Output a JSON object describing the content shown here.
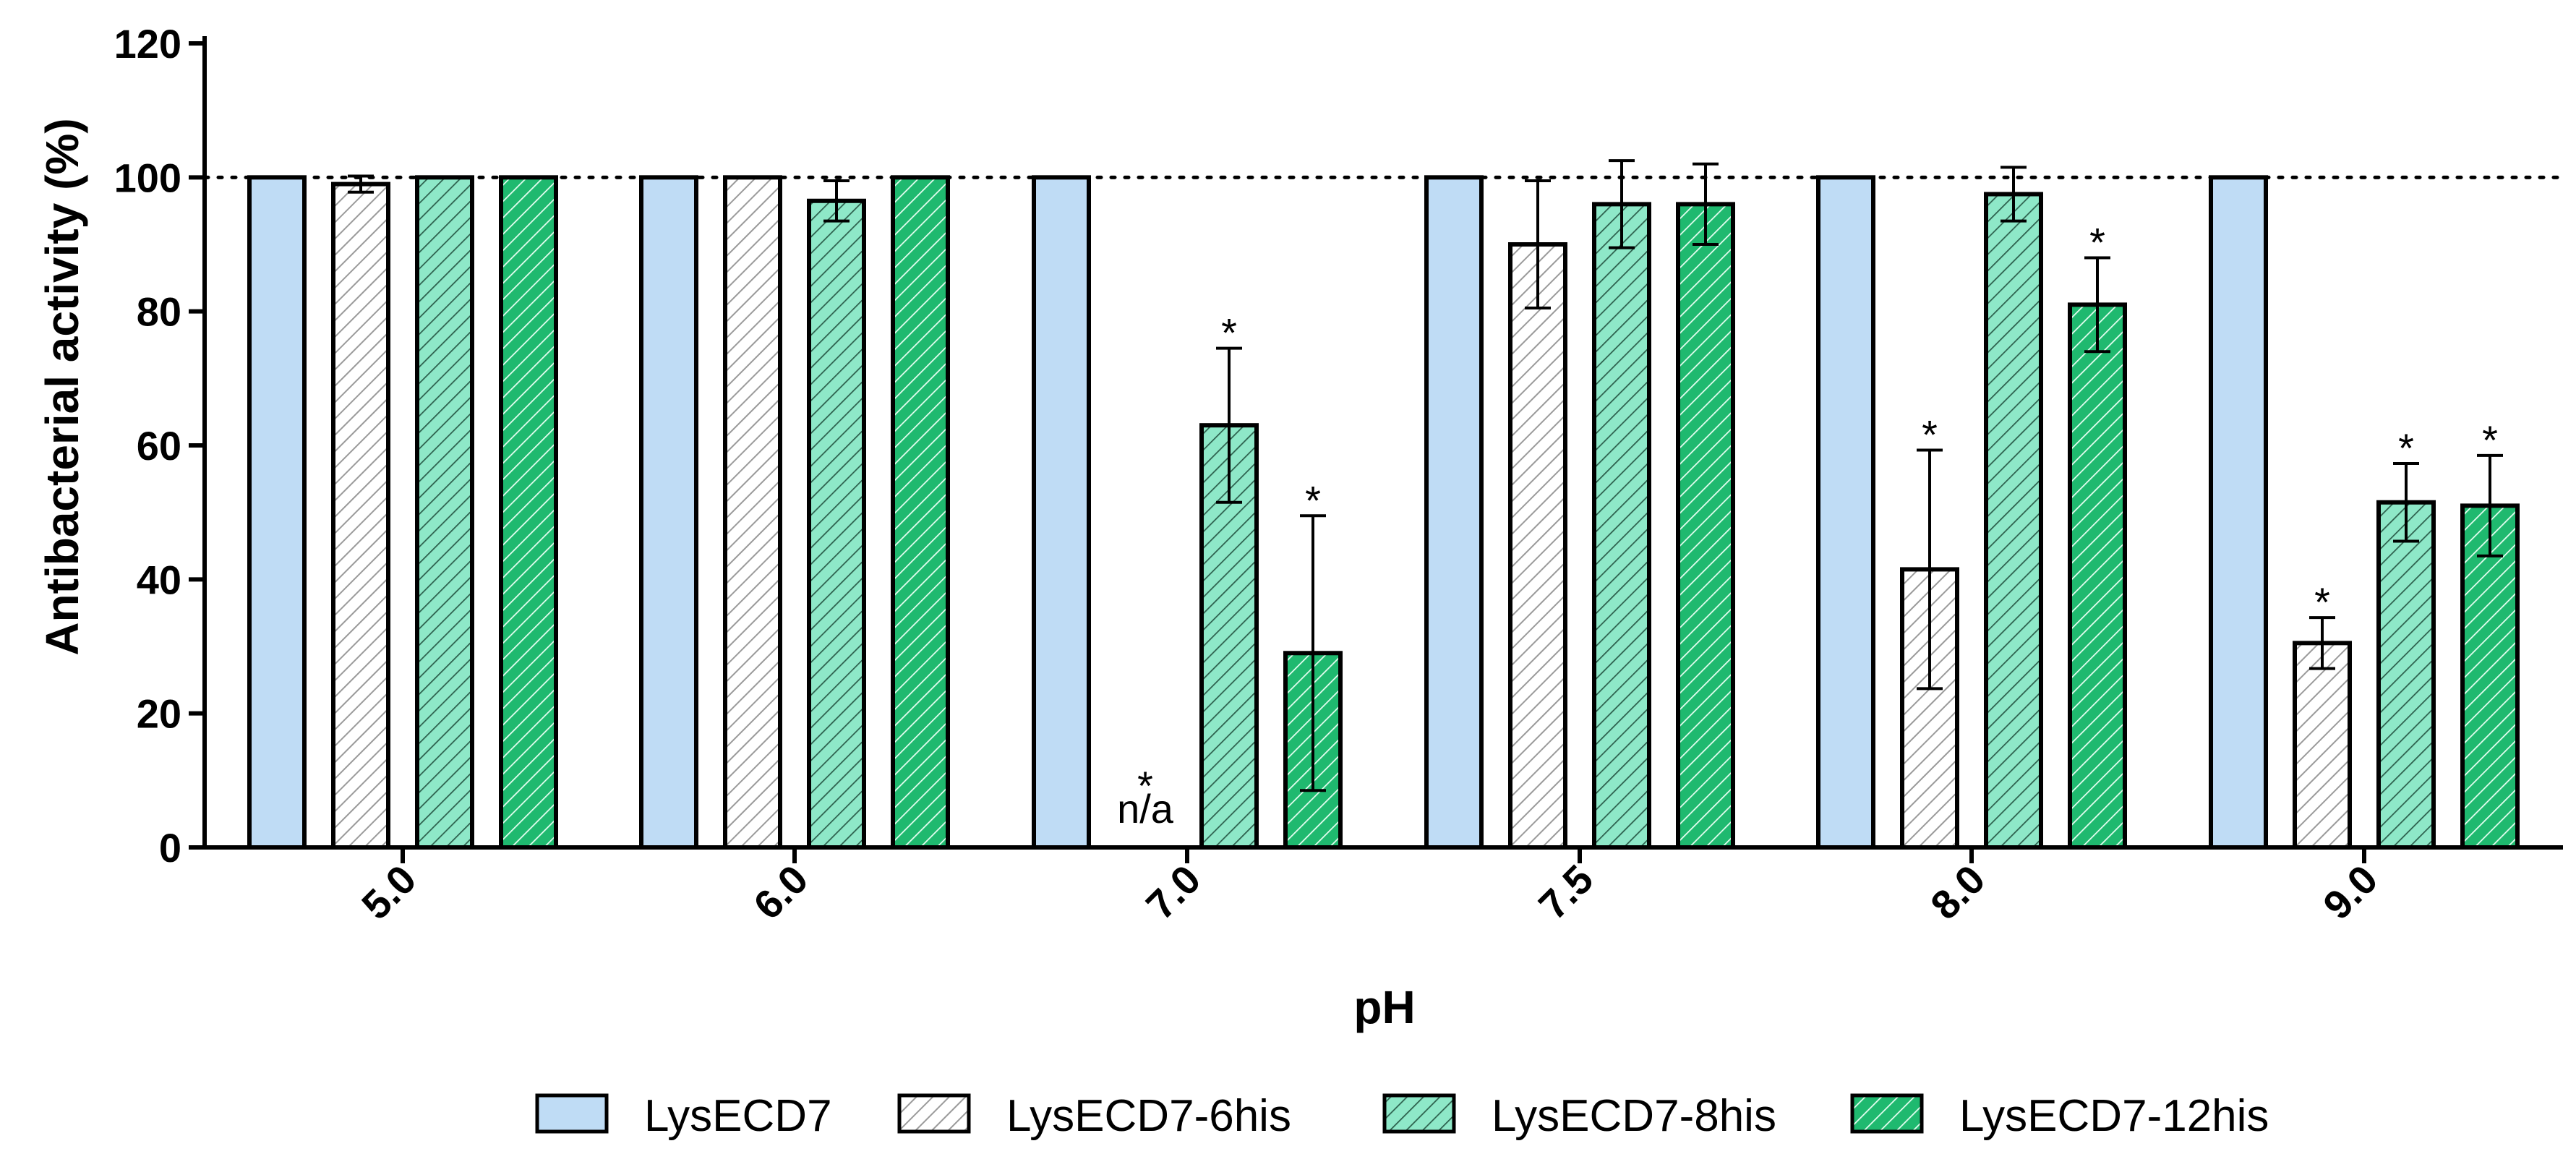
{
  "chart_data": {
    "type": "bar",
    "title": "",
    "xlabel": "pH",
    "ylabel": "Antibacterial activity (%)",
    "ylim": [
      0,
      120
    ],
    "yticks": [
      0,
      20,
      40,
      60,
      80,
      100,
      120
    ],
    "reference_line": {
      "y": 100,
      "style": "dotted"
    },
    "grid": false,
    "legend_position": "bottom",
    "categories": [
      "5.0",
      "6.0",
      "7.0",
      "7.5",
      "8.0",
      "9.0"
    ],
    "series": [
      {
        "name": "LysECD7",
        "color": "#bfdcf5",
        "pattern": "solid",
        "values": [
          100,
          100,
          100,
          100,
          100,
          100
        ],
        "errors": [
          null,
          null,
          null,
          null,
          null,
          null
        ],
        "significant": [
          false,
          false,
          false,
          false,
          false,
          false
        ],
        "na": [
          false,
          false,
          false,
          false,
          false,
          false
        ]
      },
      {
        "name": "LysECD7-6his",
        "color": "#ffffff",
        "pattern": "hatch-gray",
        "values": [
          99,
          100,
          0,
          90,
          41.5,
          30.5
        ],
        "errors": [
          1.2,
          null,
          null,
          9.5,
          17.8,
          3.8
        ],
        "significant": [
          false,
          false,
          true,
          false,
          true,
          true
        ],
        "na": [
          false,
          false,
          true,
          false,
          false,
          false
        ]
      },
      {
        "name": "LysECD7-8his",
        "color": "#8ee8c8",
        "pattern": "hatch-light",
        "values": [
          100,
          96.5,
          63,
          96,
          97.5,
          51.5
        ],
        "errors": [
          null,
          3,
          11.5,
          6.5,
          4,
          5.8
        ],
        "significant": [
          false,
          false,
          true,
          false,
          false,
          true
        ],
        "na": [
          false,
          false,
          false,
          false,
          false,
          false
        ]
      },
      {
        "name": "LysECD7-12his",
        "color": "#1fb96f",
        "pattern": "hatch-dark",
        "values": [
          100,
          100,
          29,
          96,
          81,
          51
        ],
        "errors": [
          null,
          null,
          20.5,
          6,
          7,
          7.5
        ],
        "significant": [
          false,
          false,
          true,
          false,
          true,
          true
        ],
        "na": [
          false,
          false,
          false,
          false,
          false,
          false
        ]
      }
    ],
    "annotations": {
      "significance_marker": "*",
      "na_label": "n/a"
    }
  }
}
